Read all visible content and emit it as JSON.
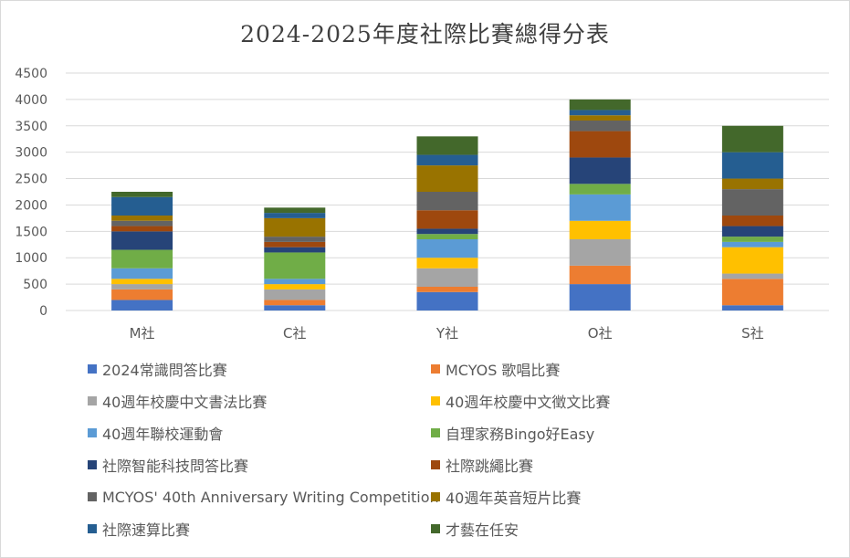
{
  "chart_data": {
    "type": "bar",
    "stacked": true,
    "title": "2024-2025年度社際比賽總得分表",
    "xlabel": "",
    "ylabel": "",
    "ylim": [
      0,
      4500
    ],
    "yticks": [
      0,
      500,
      1000,
      1500,
      2000,
      2500,
      3000,
      3500,
      4000,
      4500
    ],
    "grid": true,
    "legend_position": "bottom",
    "categories": [
      "M社",
      "C社",
      "Y社",
      "O社",
      "S社"
    ],
    "series": [
      {
        "name": "2024常識問答比賽",
        "color": "#4472C4",
        "values": [
          200,
          100,
          350,
          500,
          100
        ]
      },
      {
        "name": "MCYOS 歌唱比賽",
        "color": "#ED7D31",
        "values": [
          200,
          100,
          100,
          350,
          500
        ]
      },
      {
        "name": "40週年校慶中文書法比賽",
        "color": "#A5A5A5",
        "values": [
          100,
          200,
          350,
          500,
          100
        ]
      },
      {
        "name": "40週年校慶中文徵文比賽",
        "color": "#FFC000",
        "values": [
          100,
          100,
          200,
          350,
          500
        ]
      },
      {
        "name": "40週年聯校運動會",
        "color": "#5B9BD5",
        "values": [
          200,
          100,
          350,
          500,
          100
        ]
      },
      {
        "name": "自理家務Bingo好Easy",
        "color": "#70AD47",
        "values": [
          350,
          500,
          100,
          200,
          100
        ]
      },
      {
        "name": "社際智能科技問答比賽",
        "color": "#264478",
        "values": [
          350,
          100,
          100,
          500,
          200
        ]
      },
      {
        "name": "社際跳繩比賽",
        "color": "#9E480E",
        "values": [
          100,
          100,
          350,
          500,
          200
        ]
      },
      {
        "name": "MCYOS' 40th Anniversary Writing Competition",
        "color": "#636363",
        "values": [
          100,
          100,
          350,
          200,
          500
        ]
      },
      {
        "name": "40週年英音短片比賽",
        "color": "#997300",
        "values": [
          100,
          350,
          500,
          100,
          200
        ]
      },
      {
        "name": "社際速算比賽",
        "color": "#255E91",
        "values": [
          350,
          100,
          200,
          100,
          500
        ]
      },
      {
        "name": "才藝在任安",
        "color": "#43682B",
        "values": [
          100,
          100,
          350,
          200,
          500
        ]
      }
    ]
  }
}
